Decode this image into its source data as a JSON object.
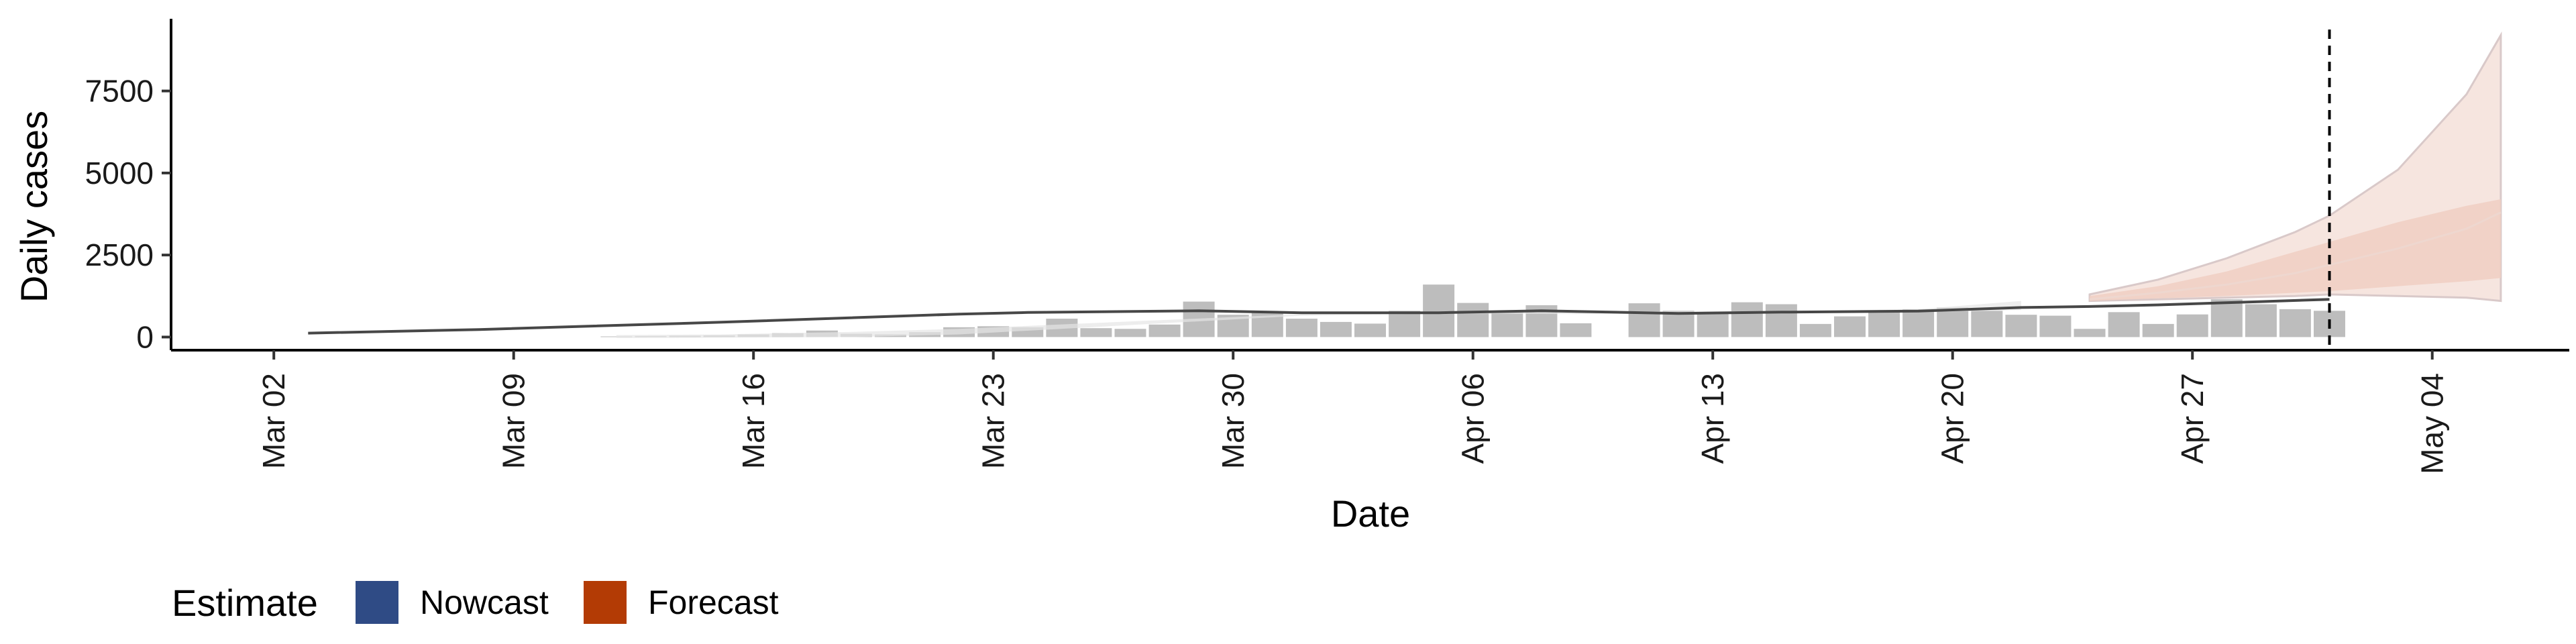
{
  "chart_data": {
    "type": "bar",
    "xlabel": "Date",
    "ylabel": "Daily cases",
    "x_ticks": [
      "Mar 02",
      "Mar 09",
      "Mar 16",
      "Mar 23",
      "Mar 30",
      "Apr 06",
      "Apr 13",
      "Apr 20",
      "Apr 27",
      "May 04"
    ],
    "y_ticks": [
      0,
      2500,
      5000,
      7500
    ],
    "ylim": [
      -400,
      9700
    ],
    "xlim": [
      "2020-02-29",
      "2020-05-09"
    ],
    "grid": false,
    "legend_position": "bottom-left",
    "cutoff_date": "2020-05-02",
    "reported_cases": {
      "dates": [
        "2020-03-13",
        "2020-03-14",
        "2020-03-15",
        "2020-03-16",
        "2020-03-17",
        "2020-03-18",
        "2020-03-19",
        "2020-03-20",
        "2020-03-21",
        "2020-03-22",
        "2020-03-23",
        "2020-03-24",
        "2020-03-25",
        "2020-03-26",
        "2020-03-27",
        "2020-03-28",
        "2020-03-29",
        "2020-03-30",
        "2020-03-31",
        "2020-04-01",
        "2020-04-02",
        "2020-04-03",
        "2020-04-04",
        "2020-04-05",
        "2020-04-06",
        "2020-04-07",
        "2020-04-08",
        "2020-04-09",
        "2020-04-10",
        "2020-04-11",
        "2020-04-12",
        "2020-04-13",
        "2020-04-14",
        "2020-04-15",
        "2020-04-16",
        "2020-04-17",
        "2020-04-18",
        "2020-04-19",
        "2020-04-20",
        "2020-04-21",
        "2020-04-22",
        "2020-04-23",
        "2020-04-24",
        "2020-04-25",
        "2020-04-26",
        "2020-04-27",
        "2020-04-28",
        "2020-04-29",
        "2020-04-30",
        "2020-05-01",
        "2020-05-02"
      ],
      "values": [
        20,
        30,
        40,
        50,
        80,
        120,
        200,
        100,
        80,
        150,
        300,
        330,
        300,
        560,
        270,
        250,
        380,
        1080,
        680,
        740,
        560,
        460,
        410,
        800,
        1600,
        1040,
        800,
        970,
        420,
        0,
        1030,
        800,
        760,
        1060,
        1000,
        400,
        630,
        800,
        850,
        900,
        800,
        680,
        650,
        250,
        760,
        400,
        690,
        1150,
        1000,
        850,
        800
      ]
    },
    "series": [
      {
        "name": "Nowcast",
        "color": "#2f4b85",
        "median": {
          "dates": [
            "2020-03-04",
            "2020-03-09",
            "2020-03-16",
            "2020-03-23",
            "2020-03-25",
            "2020-03-30",
            "2020-04-02",
            "2020-04-06",
            "2020-04-09",
            "2020-04-13",
            "2020-04-16",
            "2020-04-20",
            "2020-04-23",
            "2020-04-25",
            "2020-04-27",
            "2020-04-30",
            "2020-05-02"
          ],
          "values": [
            120,
            230,
            450,
            700,
            750,
            800,
            740,
            740,
            800,
            720,
            760,
            790,
            900,
            930,
            980,
            1080,
            1150
          ]
        },
        "band_dates": [
          "2020-03-13",
          "2020-03-16",
          "2020-03-20",
          "2020-03-23",
          "2020-04-02",
          "2020-04-06",
          "2020-04-10",
          "2020-04-13",
          "2020-04-16",
          "2020-04-20",
          "2020-04-23"
        ],
        "band_lower": [
          -30,
          -20,
          0,
          80,
          650,
          720,
          700,
          720,
          730,
          760,
          820
        ],
        "band_upper": [
          60,
          80,
          160,
          250,
          700,
          760,
          780,
          780,
          790,
          850,
          1100
        ]
      },
      {
        "name": "Forecast",
        "color": "#b33b05",
        "dates": [
          "2020-04-25",
          "2020-04-27",
          "2020-04-29",
          "2020-05-01",
          "2020-05-02",
          "2020-05-04",
          "2020-05-06",
          "2020-05-07"
        ],
        "median": [
          1150,
          1350,
          1600,
          1950,
          2200,
          2700,
          3300,
          3800
        ],
        "lower_90": [
          1100,
          1150,
          1200,
          1250,
          1300,
          1250,
          1200,
          1100
        ],
        "upper_90": [
          1300,
          1750,
          2400,
          3200,
          3700,
          5100,
          7400,
          9200
        ],
        "lower_50": [
          1100,
          1180,
          1250,
          1350,
          1400,
          1550,
          1700,
          1800
        ],
        "upper_50": [
          1250,
          1550,
          2000,
          2600,
          2900,
          3500,
          4000,
          4200
        ]
      }
    ],
    "legend": {
      "title": "Estimate",
      "items": [
        {
          "label": "Nowcast",
          "color": "#2f4b85"
        },
        {
          "label": "Forecast",
          "color": "#b33b05"
        }
      ]
    }
  }
}
